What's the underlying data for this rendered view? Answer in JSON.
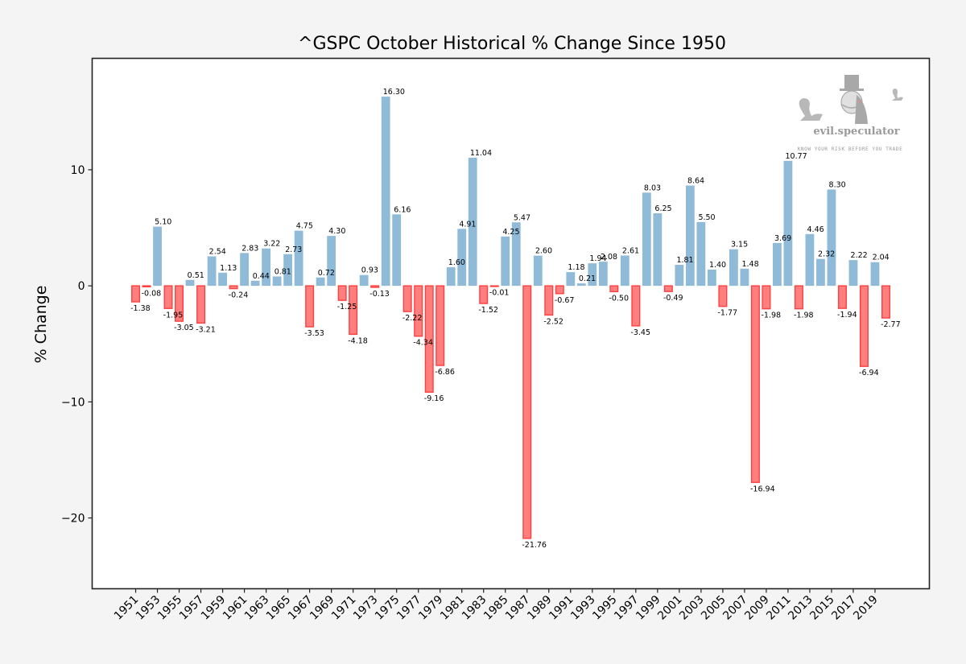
{
  "chart_data": {
    "type": "bar",
    "title": "^GSPC October Historical % Change Since 1950",
    "xlabel": "",
    "ylabel": "% Change",
    "xlim": [
      1947,
      2024
    ],
    "ylim": [
      -26.1,
      19.6
    ],
    "grid": false,
    "yticks": [
      10,
      0,
      -10,
      -20
    ],
    "ytick_labels": [
      "10",
      "0",
      "−10",
      "−20"
    ],
    "xticks": [
      1951,
      1953,
      1955,
      1957,
      1959,
      1961,
      1963,
      1965,
      1967,
      1969,
      1971,
      1973,
      1975,
      1977,
      1979,
      1981,
      1983,
      1985,
      1987,
      1989,
      1991,
      1993,
      1995,
      1997,
      1999,
      2001,
      2003,
      2005,
      2007,
      2009,
      2011,
      2013,
      2015,
      2017,
      2019
    ],
    "xtick_labels": [
      "1951",
      "1953",
      "1955",
      "1957",
      "1959",
      "1961",
      "1963",
      "1965",
      "1967",
      "1969",
      "1971",
      "1973",
      "1975",
      "1977",
      "1979",
      "1981",
      "1983",
      "1985",
      "1987",
      "1989",
      "1991",
      "1993",
      "1995",
      "1997",
      "1999",
      "2001",
      "2003",
      "2005",
      "2007",
      "2009",
      "2011",
      "2013",
      "2015",
      "2017",
      "2019"
    ],
    "x_start": 1951,
    "values": [
      -1.38,
      -0.08,
      5.1,
      -1.95,
      -3.05,
      0.51,
      -3.21,
      2.54,
      1.13,
      -0.24,
      2.83,
      0.44,
      3.22,
      0.81,
      2.73,
      4.75,
      -3.53,
      0.72,
      4.3,
      -1.25,
      -4.18,
      0.93,
      -0.13,
      16.3,
      6.16,
      -2.22,
      -4.34,
      -9.16,
      -6.86,
      1.6,
      4.91,
      11.04,
      -1.52,
      -0.01,
      4.25,
      5.47,
      -21.76,
      2.6,
      -2.52,
      -0.67,
      1.18,
      0.21,
      1.94,
      2.08,
      -0.5,
      2.61,
      -3.45,
      8.03,
      6.25,
      -0.49,
      1.81,
      8.64,
      5.5,
      1.4,
      -1.77,
      3.15,
      1.48,
      -16.94,
      -1.98,
      3.69,
      10.77,
      -1.98,
      4.46,
      2.32,
      8.3,
      -1.94,
      2.22,
      -6.94,
      2.04,
      -2.77
    ],
    "value_labels": [
      "-1.38",
      "-0.08",
      "5.10",
      "-1.95",
      "-3.05",
      "0.51",
      "-3.21",
      "2.54",
      "1.13",
      "-0.24",
      "2.83",
      "0.44",
      "3.22",
      "0.81",
      "2.73",
      "4.75",
      "-3.53",
      "0.72",
      "4.30",
      "-1.25",
      "-4.18",
      "0.93",
      "-0.13",
      "16.30",
      "6.16",
      "-2.22",
      "-4.34",
      "-9.16",
      "-6.86",
      "1.60",
      "4.91",
      "11.04",
      "-1.52",
      "-0.01",
      "4.25",
      "5.47",
      "-21.76",
      "2.60",
      "-2.52",
      "-0.67",
      "1.18",
      "0.21",
      "1.94",
      "2.08",
      "-0.50",
      "2.61",
      "-3.45",
      "8.03",
      "6.25",
      "-0.49",
      "1.81",
      "8.64",
      "5.50",
      "1.40",
      "-1.77",
      "3.15",
      "1.48",
      "-16.94",
      "-1.98",
      "3.69",
      "10.77",
      "-1.98",
      "4.46",
      "2.32",
      "8.30",
      "-1.94",
      "2.22",
      "-6.94",
      "2.04",
      "-2.77"
    ],
    "colors": {
      "positive": "#8fbbd9",
      "negative_fill": "#ff7f7f",
      "negative_edge": "#ff4040",
      "background": "#f4f4f4",
      "plot_background": "#ffffff",
      "frame": "#222222"
    }
  },
  "watermark": {
    "brand": "evil.speculator",
    "tagline": "KNOW YOUR RISK BEFORE YOU TRADE"
  }
}
